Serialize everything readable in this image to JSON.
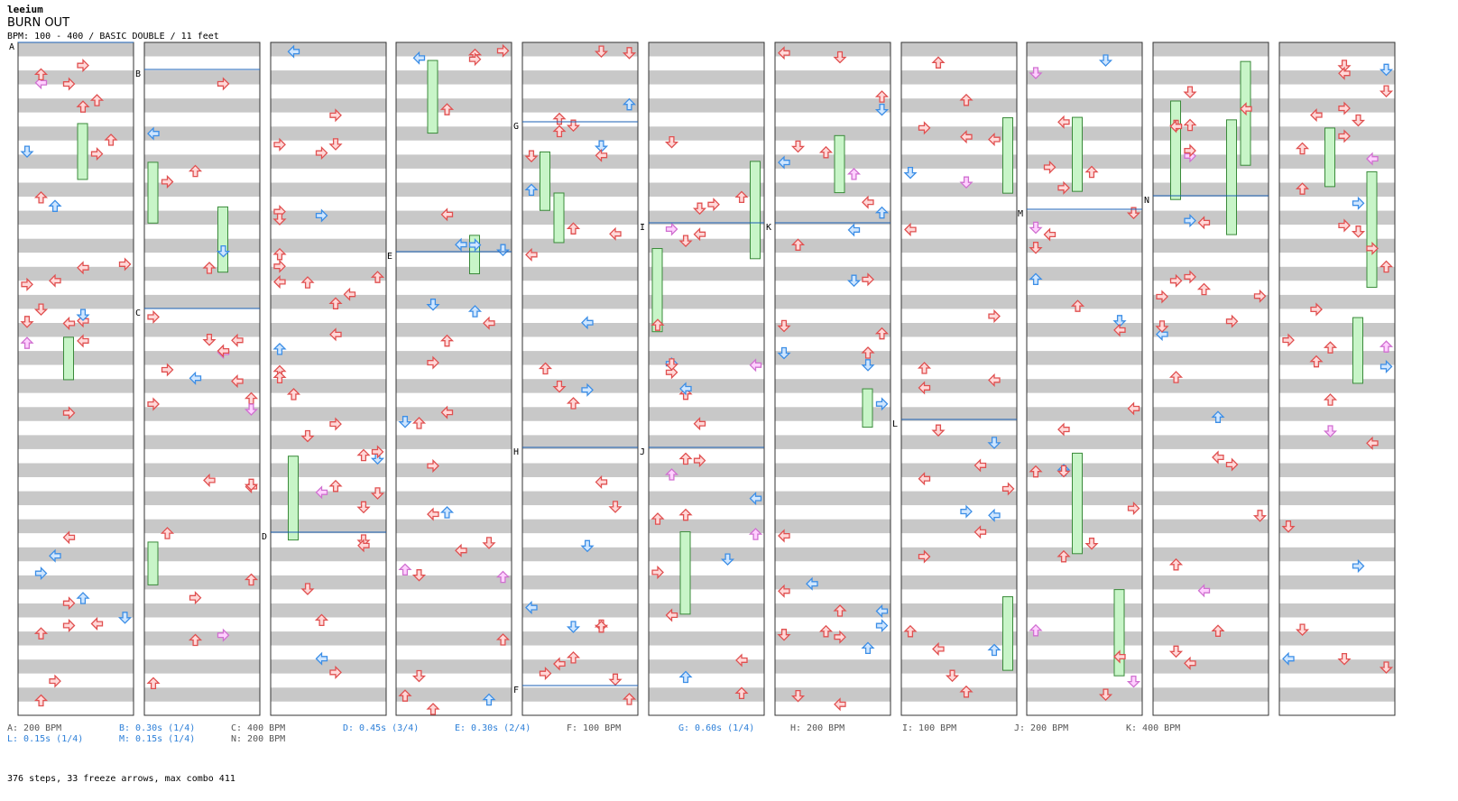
{
  "header": {
    "author": "leeium",
    "title": "BURN OUT",
    "info": "BPM: 100 - 400 / BASIC DOUBLE / 11 feet"
  },
  "colors": {
    "stripe_dark": "#c8c8c8",
    "stripe_light": "#ffffff",
    "note_red": "#e05050",
    "note_red_fill": "#ffd8d8",
    "note_blue": "#3c8ee6",
    "note_blue_fill": "#cfe6ff",
    "note_pink": "#d070d0",
    "note_pink_fill": "#ffd0ff",
    "freeze_fill": "#c8f5c8",
    "freeze_border": "#3a8a3a",
    "marker_line": "#1a5fb4"
  },
  "section_markers": [
    "A",
    "B",
    "C",
    "D",
    "E",
    "F",
    "G",
    "H",
    "I",
    "J",
    "K",
    "L",
    "M",
    "N"
  ],
  "legend": [
    {
      "text": "A: 200 BPM",
      "color": "#555555"
    },
    {
      "text": "B: 0.30s (1/4)",
      "color": "#2c7fd8"
    },
    {
      "text": "C: 400 BPM",
      "color": "#555555"
    },
    {
      "text": "D: 0.45s (3/4)",
      "color": "#2c7fd8"
    },
    {
      "text": "E: 0.30s (2/4)",
      "color": "#2c7fd8"
    },
    {
      "text": "F: 100 BPM",
      "color": "#555555"
    },
    {
      "text": "G: 0.60s (1/4)",
      "color": "#2c7fd8"
    },
    {
      "text": "H: 200 BPM",
      "color": "#555555"
    },
    {
      "text": "I: 100 BPM",
      "color": "#555555"
    },
    {
      "text": "J: 200 BPM",
      "color": "#555555"
    },
    {
      "text": "K: 400 BPM",
      "color": "#555555"
    },
    {
      "text": "L: 0.15s (1/4)",
      "color": "#2c7fd8"
    },
    {
      "text": "M: 0.15s (1/4)",
      "color": "#2c7fd8"
    },
    {
      "text": "N: 200 BPM",
      "color": "#555555"
    }
  ],
  "summary": "376 steps, 33 freeze arrows, max combo 411"
}
